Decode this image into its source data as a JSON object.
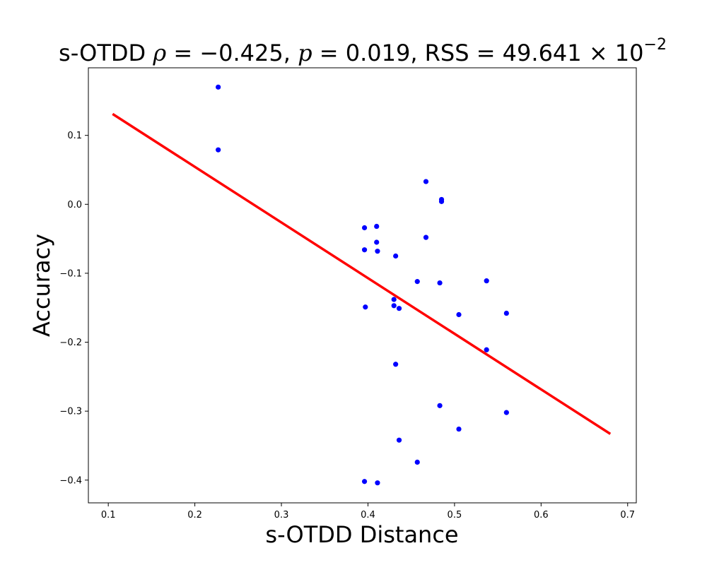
{
  "chart_data": {
    "type": "scatter",
    "title": {
      "prefix": "s-OTDD ",
      "rho_symbol": "ρ",
      "rho_part": " = −0.425, ",
      "p_symbol": "p",
      "p_part": " = 0.019, RSS = 49.641 × 10",
      "exponent": "−2"
    },
    "xlabel": "s-OTDD Distance",
    "ylabel": "Accuracy",
    "xlim": [
      0.077,
      0.71
    ],
    "ylim": [
      -0.433,
      0.198
    ],
    "xticks": [
      0.1,
      0.2,
      0.3,
      0.4,
      0.5,
      0.6,
      0.7
    ],
    "xtick_labels": [
      "0.1",
      "0.2",
      "0.3",
      "0.4",
      "0.5",
      "0.6",
      "0.7"
    ],
    "yticks": [
      -0.4,
      -0.3,
      -0.2,
      -0.1,
      0.0,
      0.1
    ],
    "ytick_labels": [
      "−0.4",
      "−0.3",
      "−0.2",
      "−0.1",
      "0.0",
      "0.1"
    ],
    "grid": false,
    "point_color": "#0000ff",
    "fit_color": "#ff0000",
    "points": [
      {
        "x": 0.227,
        "y": 0.17
      },
      {
        "x": 0.227,
        "y": 0.079
      },
      {
        "x": 0.396,
        "y": -0.034
      },
      {
        "x": 0.396,
        "y": -0.066
      },
      {
        "x": 0.397,
        "y": -0.149
      },
      {
        "x": 0.396,
        "y": -0.402
      },
      {
        "x": 0.41,
        "y": -0.032
      },
      {
        "x": 0.41,
        "y": -0.055
      },
      {
        "x": 0.411,
        "y": -0.068
      },
      {
        "x": 0.411,
        "y": -0.404
      },
      {
        "x": 0.43,
        "y": -0.138
      },
      {
        "x": 0.43,
        "y": -0.147
      },
      {
        "x": 0.432,
        "y": -0.075
      },
      {
        "x": 0.432,
        "y": -0.232
      },
      {
        "x": 0.436,
        "y": -0.151
      },
      {
        "x": 0.436,
        "y": -0.342
      },
      {
        "x": 0.457,
        "y": -0.112
      },
      {
        "x": 0.457,
        "y": -0.374
      },
      {
        "x": 0.467,
        "y": 0.033
      },
      {
        "x": 0.467,
        "y": -0.048
      },
      {
        "x": 0.483,
        "y": -0.114
      },
      {
        "x": 0.483,
        "y": -0.292
      },
      {
        "x": 0.485,
        "y": 0.007
      },
      {
        "x": 0.485,
        "y": 0.004
      },
      {
        "x": 0.505,
        "y": -0.16
      },
      {
        "x": 0.505,
        "y": -0.326
      },
      {
        "x": 0.537,
        "y": -0.111
      },
      {
        "x": 0.537,
        "y": -0.211
      },
      {
        "x": 0.56,
        "y": -0.158
      },
      {
        "x": 0.56,
        "y": -0.302
      }
    ],
    "fit_line": {
      "x": [
        0.105,
        0.68
      ],
      "y": [
        0.131,
        -0.333
      ]
    }
  }
}
